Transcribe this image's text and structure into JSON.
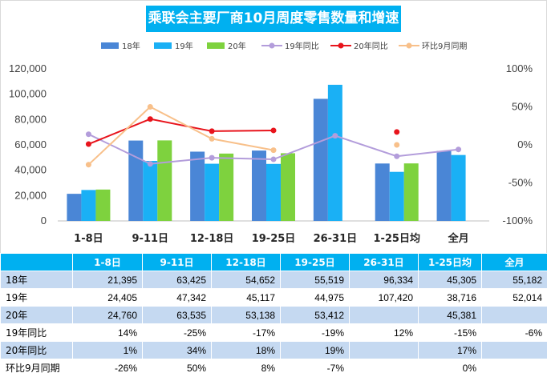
{
  "title": "乘联会主要厂商10月周度零售数量和增速",
  "colors": {
    "title_bg": "#00b0f0",
    "s18": "#4a86d6",
    "s19": "#1ab0f5",
    "s20": "#7ed23e",
    "l19": "#b39ddb",
    "l20": "#e8141c",
    "lmom": "#f8c08a",
    "grid": "#d9d9d9",
    "table_header": "#00b0f0",
    "table_band": "#c5d9f1"
  },
  "chart_data": {
    "type": "bar",
    "categories": [
      "1-8日",
      "9-11日",
      "12-18日",
      "19-25日",
      "26-31日",
      "1-25日均",
      "全月"
    ],
    "series": [
      {
        "name": "18年",
        "kind": "bar",
        "values": [
          21395,
          63425,
          54652,
          55519,
          96334,
          45305,
          55182
        ]
      },
      {
        "name": "19年",
        "kind": "bar",
        "values": [
          24405,
          47342,
          45117,
          44975,
          107420,
          38716,
          52014
        ]
      },
      {
        "name": "20年",
        "kind": "bar",
        "values": [
          24760,
          63535,
          53138,
          53412,
          null,
          45381,
          null
        ]
      },
      {
        "name": "19年同比",
        "kind": "line",
        "axis": "right",
        "values": [
          14,
          -25,
          -17,
          -19,
          12,
          -15,
          -6
        ]
      },
      {
        "name": "20年同比",
        "kind": "line",
        "axis": "right",
        "values": [
          1,
          34,
          18,
          19,
          null,
          17,
          null
        ]
      },
      {
        "name": "环比9月同期",
        "kind": "line",
        "axis": "right",
        "values": [
          -26,
          50,
          8,
          -7,
          null,
          0,
          null
        ]
      }
    ],
    "y_left": {
      "min": 0,
      "max": 120000,
      "ticks": [
        "0",
        "20,000",
        "40,000",
        "60,000",
        "80,000",
        "100,000",
        "120,000"
      ]
    },
    "y_right": {
      "min": -100,
      "max": 100,
      "ticks": [
        "-100%",
        "-50%",
        "0%",
        "50%",
        "100%"
      ]
    },
    "legend_position": "top",
    "grid": false
  },
  "table": {
    "header": [
      "",
      "1-8日",
      "9-11日",
      "12-18日",
      "19-25日",
      "26-31日",
      "1-25日均",
      "全月"
    ],
    "rows": [
      {
        "label": "18年",
        "cells": [
          "21,395",
          "63,425",
          "54,652",
          "55,519",
          "96,334",
          "45,305",
          "55,182"
        ]
      },
      {
        "label": "19年",
        "cells": [
          "24,405",
          "47,342",
          "45,117",
          "44,975",
          "107,420",
          "38,716",
          "52,014"
        ]
      },
      {
        "label": "20年",
        "cells": [
          "24,760",
          "63,535",
          "53,138",
          "53,412",
          "",
          "45,381",
          ""
        ]
      },
      {
        "label": "19年同比",
        "cells": [
          "14%",
          "-25%",
          "-17%",
          "-19%",
          "12%",
          "-15%",
          "-6%"
        ]
      },
      {
        "label": "20年同比",
        "cells": [
          "1%",
          "34%",
          "18%",
          "19%",
          "",
          "17%",
          ""
        ]
      },
      {
        "label": "环比9月同期",
        "cells": [
          "-26%",
          "50%",
          "8%",
          "-7%",
          "",
          "0%",
          ""
        ]
      }
    ]
  }
}
